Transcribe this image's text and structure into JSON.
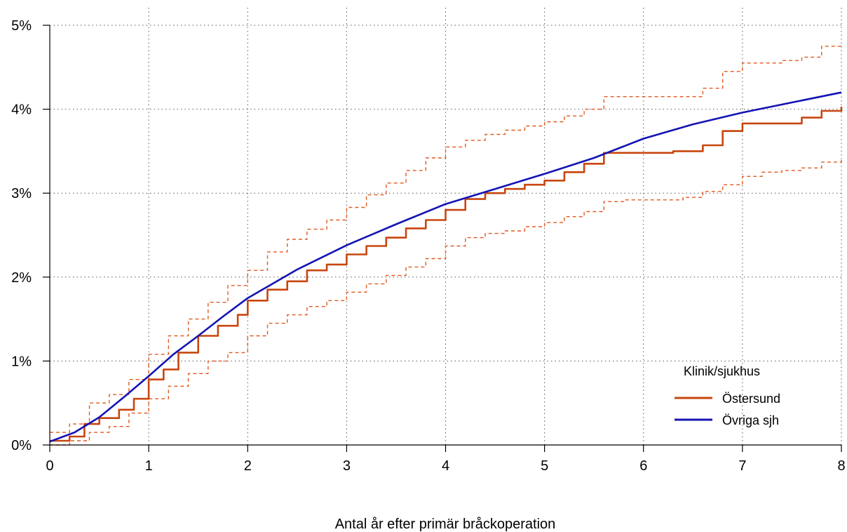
{
  "chart_data": {
    "type": "line",
    "xlabel": "Antal år efter primär bråckoperation",
    "ylabel": "",
    "xlim": [
      0,
      8
    ],
    "ylim": [
      0,
      5
    ],
    "x_ticks": [
      0,
      1,
      2,
      3,
      4,
      5,
      6,
      7,
      8
    ],
    "y_ticks": [
      0,
      1,
      2,
      3,
      4,
      5
    ],
    "x_tick_labels": [
      "0",
      "1",
      "2",
      "3",
      "4",
      "5",
      "6",
      "7",
      "8"
    ],
    "y_tick_labels": [
      "0%",
      "1%",
      "2%",
      "3%",
      "4%",
      "5%"
    ],
    "grid": true,
    "legend": {
      "title": "Klinik/sjukhus",
      "position": "bottom-right",
      "entries": [
        "Östersund",
        "Övriga sjh"
      ]
    },
    "series": [
      {
        "name": "Östersund",
        "color": "#c8460f",
        "style": "step",
        "x": [
          0,
          0.2,
          0.35,
          0.5,
          0.7,
          0.85,
          1.0,
          1.15,
          1.3,
          1.5,
          1.7,
          1.9,
          2.0,
          2.2,
          2.4,
          2.6,
          2.8,
          3.0,
          3.2,
          3.4,
          3.6,
          3.8,
          4.0,
          4.2,
          4.4,
          4.6,
          4.8,
          5.0,
          5.2,
          5.4,
          5.6,
          5.7,
          6.0,
          6.3,
          6.6,
          6.8,
          7.0,
          7.3,
          7.6,
          7.8,
          8.0
        ],
        "y": [
          0.05,
          0.1,
          0.25,
          0.32,
          0.42,
          0.55,
          0.78,
          0.9,
          1.1,
          1.3,
          1.42,
          1.55,
          1.72,
          1.85,
          1.95,
          2.08,
          2.15,
          2.27,
          2.37,
          2.47,
          2.58,
          2.68,
          2.8,
          2.93,
          3.0,
          3.05,
          3.1,
          3.15,
          3.25,
          3.35,
          3.48,
          3.48,
          3.48,
          3.5,
          3.57,
          3.74,
          3.83,
          3.83,
          3.9,
          3.98,
          4.03
        ]
      },
      {
        "name": "Övriga sjh",
        "color": "#1414b4",
        "style": "line",
        "x": [
          0,
          0.25,
          0.5,
          0.75,
          1.0,
          1.25,
          1.5,
          1.75,
          2.0,
          2.5,
          3.0,
          3.5,
          4.0,
          4.5,
          5.0,
          5.5,
          6.0,
          6.5,
          7.0,
          7.5,
          8.0
        ],
        "y": [
          0.04,
          0.15,
          0.33,
          0.57,
          0.82,
          1.08,
          1.3,
          1.53,
          1.75,
          2.09,
          2.38,
          2.63,
          2.87,
          3.05,
          3.23,
          3.42,
          3.65,
          3.82,
          3.96,
          4.08,
          4.2
        ]
      },
      {
        "name": "",
        "color": "#e05a20",
        "style": "dashed-step",
        "x": [
          0,
          0.2,
          0.4,
          0.6,
          0.8,
          1.0,
          1.2,
          1.4,
          1.6,
          1.8,
          2.0,
          2.2,
          2.4,
          2.6,
          2.8,
          3.0,
          3.2,
          3.4,
          3.6,
          3.8,
          4.0,
          4.2,
          4.4,
          4.6,
          4.8,
          5.0,
          5.2,
          5.4,
          5.6,
          5.8,
          6.0,
          6.2,
          6.4,
          6.6,
          6.8,
          7.0,
          7.2,
          7.4,
          7.6,
          7.8,
          8.0
        ],
        "y": [
          0.15,
          0.25,
          0.5,
          0.6,
          0.78,
          1.08,
          1.3,
          1.5,
          1.7,
          1.9,
          2.08,
          2.3,
          2.45,
          2.57,
          2.68,
          2.83,
          2.98,
          3.12,
          3.27,
          3.42,
          3.55,
          3.63,
          3.7,
          3.75,
          3.8,
          3.85,
          3.92,
          4.0,
          4.15,
          4.15,
          4.15,
          4.15,
          4.15,
          4.25,
          4.45,
          4.55,
          4.55,
          4.58,
          4.62,
          4.75,
          4.78
        ]
      },
      {
        "name": "",
        "color": "#e05a20",
        "style": "dashed-step",
        "x": [
          0,
          0.2,
          0.4,
          0.6,
          0.8,
          1.0,
          1.2,
          1.4,
          1.6,
          1.8,
          2.0,
          2.2,
          2.4,
          2.6,
          2.8,
          3.0,
          3.2,
          3.4,
          3.6,
          3.8,
          4.0,
          4.2,
          4.4,
          4.6,
          4.8,
          5.0,
          5.2,
          5.4,
          5.6,
          5.8,
          6.0,
          6.2,
          6.4,
          6.6,
          6.8,
          7.0,
          7.2,
          7.4,
          7.6,
          7.8,
          8.0
        ],
        "y": [
          0.0,
          0.05,
          0.15,
          0.22,
          0.38,
          0.55,
          0.7,
          0.85,
          1.0,
          1.1,
          1.3,
          1.45,
          1.55,
          1.65,
          1.72,
          1.82,
          1.92,
          2.02,
          2.12,
          2.22,
          2.37,
          2.47,
          2.52,
          2.55,
          2.6,
          2.65,
          2.72,
          2.78,
          2.9,
          2.92,
          2.92,
          2.92,
          2.95,
          3.02,
          3.1,
          3.2,
          3.25,
          3.27,
          3.3,
          3.37,
          3.4
        ]
      }
    ]
  }
}
